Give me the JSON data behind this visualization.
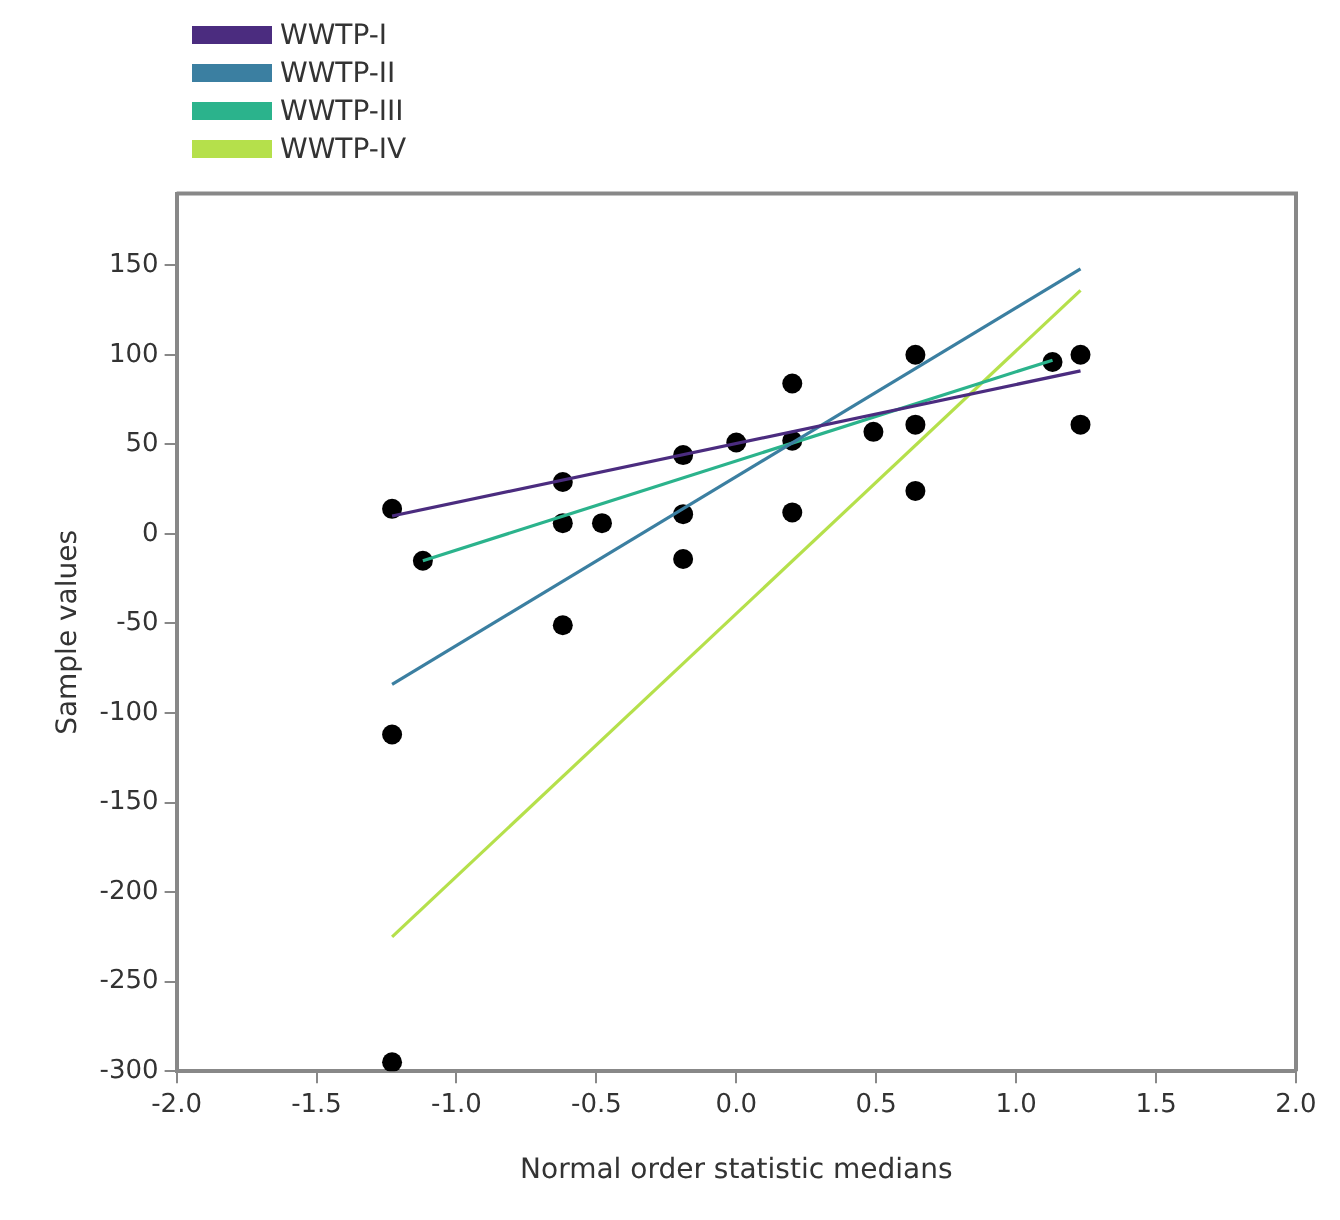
{
  "chart_data": {
    "type": "scatter",
    "xlabel": "Normal order statistic medians",
    "ylabel": "Sample values",
    "xlim": [
      -2.0,
      2.0
    ],
    "xticks": [
      {
        "value": -2,
        "label": "-2.0"
      },
      {
        "value": -1.5,
        "label": "-1.5"
      },
      {
        "value": -1,
        "label": "-1.0"
      },
      {
        "value": -0.5,
        "label": "-0.5"
      },
      {
        "value": 0,
        "label": "0.0"
      },
      {
        "value": 0.5,
        "label": "0.5"
      },
      {
        "value": 1,
        "label": "1.0"
      },
      {
        "value": 1.5,
        "label": "1.5"
      },
      {
        "value": 2,
        "label": "2.0"
      }
    ],
    "ylim": [
      -300,
      190
    ],
    "yticks": [
      -300,
      -250,
      -200,
      -150,
      -100,
      -50,
      0,
      50,
      100,
      150
    ],
    "grid": false,
    "legend": "top left",
    "series": [
      {
        "name": "WWTP-I",
        "type": "line",
        "color": "#4b2c7f",
        "marker": "none",
        "x": [
          -1.23,
          1.23
        ],
        "values": [
          10,
          91
        ]
      },
      {
        "name": "WWTP-II",
        "type": "line",
        "color": "#3b7fa1",
        "marker": "none",
        "x": [
          -1.23,
          1.23
        ],
        "values": [
          -84,
          148
        ]
      },
      {
        "name": "WWTP-III",
        "type": "line",
        "color": "#2bb38c",
        "marker": "none",
        "x": [
          -1.12,
          1.13
        ],
        "values": [
          -15,
          97
        ]
      },
      {
        "name": "WWTP-IV",
        "type": "line",
        "color": "#b5e04b",
        "marker": "none",
        "x": [
          -1.23,
          1.23
        ],
        "values": [
          -225,
          136
        ]
      },
      {
        "type": "scatter",
        "color": "#000000",
        "marker": "circle",
        "x": [
          -1.23,
          -1.12,
          -1.23,
          -1.23,
          -0.62,
          -0.62,
          -0.62,
          -0.48,
          -0.19,
          -0.19,
          -0.19,
          0.0,
          0.2,
          0.2,
          0.2,
          0.49,
          0.64,
          0.64,
          0.64,
          1.13,
          1.23,
          1.23
        ],
        "values": [
          14,
          -15,
          -112,
          -295,
          29,
          6,
          -51,
          6,
          44,
          11,
          -14,
          51,
          84,
          52,
          12,
          57,
          100,
          61,
          24,
          96,
          100,
          61
        ]
      }
    ]
  }
}
